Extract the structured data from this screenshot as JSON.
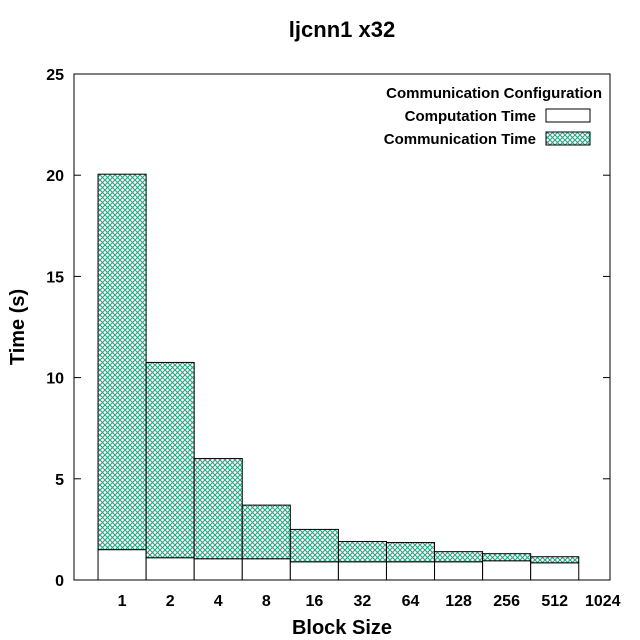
{
  "chart_data": {
    "type": "bar",
    "stacked": true,
    "title": "ljcnn1 x32",
    "xlabel": "Block Size",
    "ylabel": "Time (s)",
    "ylim": [
      0,
      25
    ],
    "yticks": [
      0,
      5,
      10,
      15,
      20,
      25
    ],
    "categories": [
      "1",
      "2",
      "4",
      "8",
      "16",
      "32",
      "64",
      "128",
      "256",
      "512"
    ],
    "xtick_labels": [
      "1",
      "2",
      "4",
      "8",
      "16",
      "32",
      "64",
      "128",
      "256",
      "512",
      "1024"
    ],
    "legend": {
      "title": "Communication Configuration",
      "position": "top-right"
    },
    "series": [
      {
        "name": "Computation Time",
        "values": [
          1.5,
          1.1,
          1.05,
          1.05,
          0.9,
          0.9,
          0.9,
          0.9,
          0.95,
          0.85
        ],
        "color": "#ffffff"
      },
      {
        "name": "Communication Time",
        "values": [
          18.55,
          9.65,
          4.95,
          2.65,
          1.6,
          1.0,
          0.95,
          0.5,
          0.35,
          0.3
        ],
        "color": "#2aa381"
      }
    ],
    "grid": false
  }
}
